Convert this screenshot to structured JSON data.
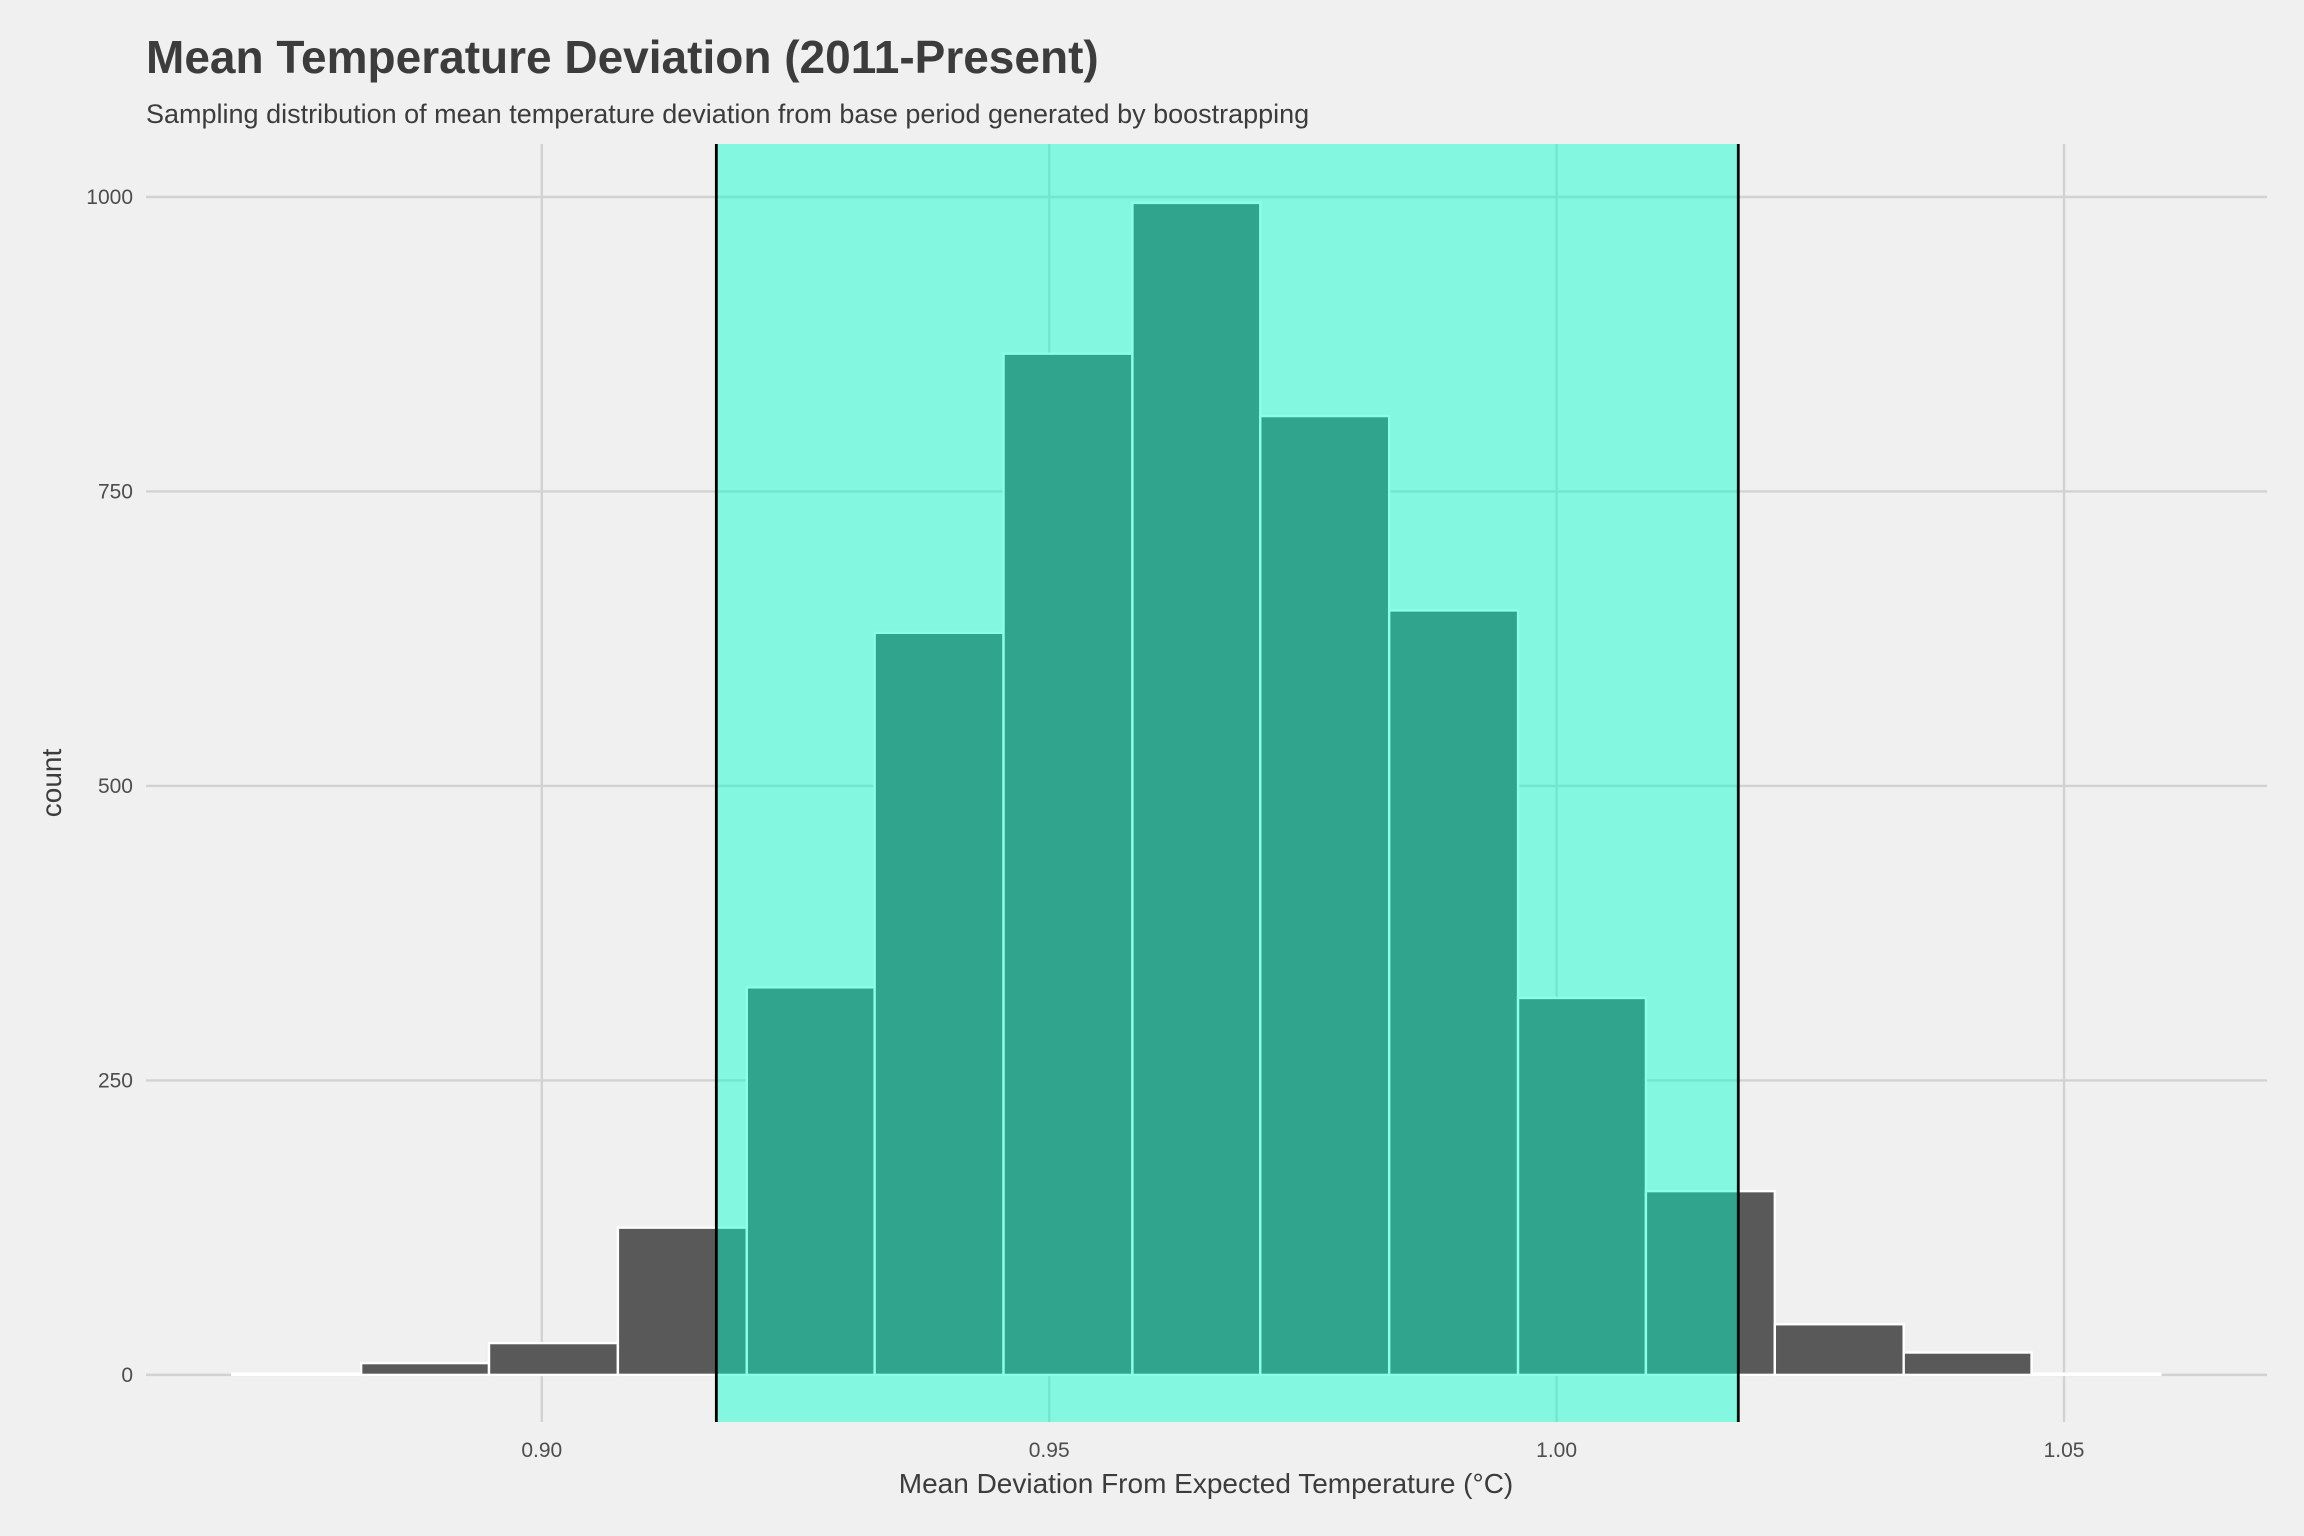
{
  "chart_data": {
    "type": "bar",
    "title": "Mean Temperature Deviation (2011-Present)",
    "subtitle": "Sampling distribution of mean temperature deviation from base period generated by boostrapping",
    "xlabel": "Mean Deviation From Expected Temperature (°C)",
    "ylabel": "count",
    "xlim": [
      0.861,
      1.07
    ],
    "ylim": [
      -40,
      1045
    ],
    "x_ticks": [
      0.9,
      0.95,
      1.0,
      1.05
    ],
    "x_tick_labels": [
      "0.90",
      "0.95",
      "1.00",
      "1.05"
    ],
    "y_ticks": [
      0,
      250,
      500,
      750,
      1000
    ],
    "y_tick_labels": [
      "0",
      "250",
      "500",
      "750",
      "1000"
    ],
    "grid": true,
    "legend": "none",
    "bins": [
      {
        "x_start": 0.8695,
        "x_end": 0.8822,
        "count": 1
      },
      {
        "x_start": 0.8822,
        "x_end": 0.8948,
        "count": 10
      },
      {
        "x_start": 0.8948,
        "x_end": 0.9075,
        "count": 27
      },
      {
        "x_start": 0.9075,
        "x_end": 0.9202,
        "count": 125
      },
      {
        "x_start": 0.9202,
        "x_end": 0.9328,
        "count": 329
      },
      {
        "x_start": 0.9328,
        "x_end": 0.9455,
        "count": 630
      },
      {
        "x_start": 0.9455,
        "x_end": 0.9582,
        "count": 867
      },
      {
        "x_start": 0.9582,
        "x_end": 0.9708,
        "count": 995
      },
      {
        "x_start": 0.9708,
        "x_end": 0.9835,
        "count": 814
      },
      {
        "x_start": 0.9835,
        "x_end": 0.9962,
        "count": 649
      },
      {
        "x_start": 0.9962,
        "x_end": 1.0088,
        "count": 320
      },
      {
        "x_start": 1.0088,
        "x_end": 1.0215,
        "count": 156
      },
      {
        "x_start": 1.0215,
        "x_end": 1.0342,
        "count": 43
      },
      {
        "x_start": 1.0342,
        "x_end": 1.0468,
        "count": 19
      },
      {
        "x_start": 1.0468,
        "x_end": 1.0595,
        "count": 1
      }
    ],
    "confidence_interval": [
      0.9172,
      1.0179
    ],
    "colors": {
      "background": "#f0f0f0",
      "bar_fill": "#595959",
      "bar_border": "#ffffff",
      "ci_shade": "#00ffcc",
      "ci_shade_opacity": 0.45,
      "ci_line": "#000000",
      "grid": "#d2d2d2",
      "text": "#3c3c3c"
    }
  }
}
